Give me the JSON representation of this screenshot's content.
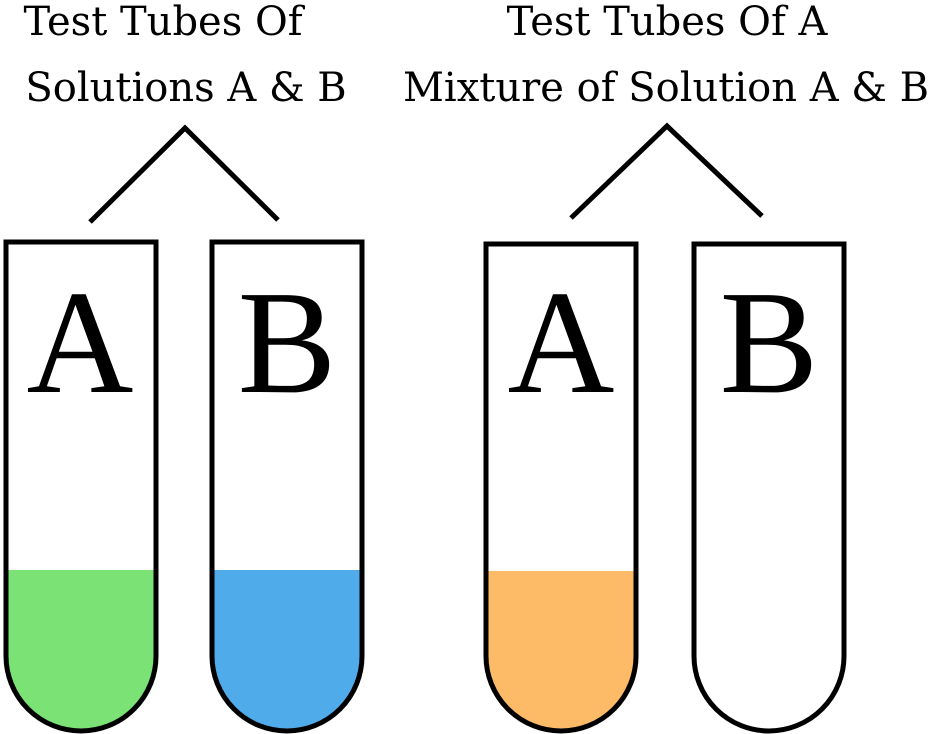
{
  "groups": [
    {
      "caption_lines": [
        "Test Tubes Of",
        "Solutions A & B"
      ],
      "tubes": [
        {
          "label": "A",
          "liquid_color": "#7be276"
        },
        {
          "label": "B",
          "liquid_color": "#50abeb"
        }
      ]
    },
    {
      "caption_lines": [
        "Test Tubes Of A",
        "Mixture of Solution A & B"
      ],
      "tubes": [
        {
          "label": "A",
          "liquid_color": "#fdbb67"
        },
        {
          "label": "B",
          "liquid_color": null
        }
      ]
    }
  ]
}
